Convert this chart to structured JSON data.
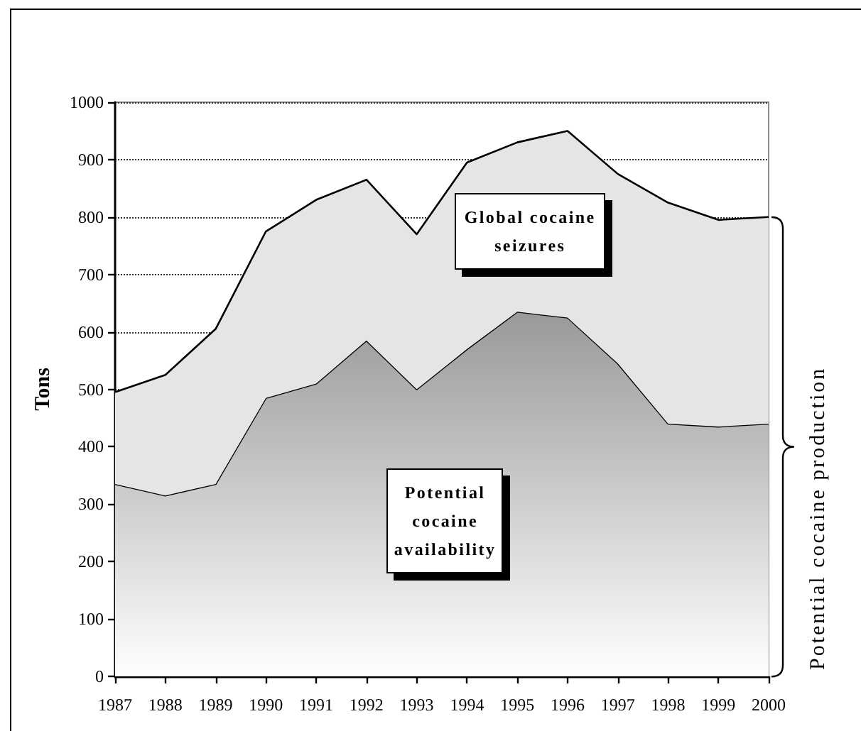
{
  "chart_data": {
    "type": "area",
    "stacked": true,
    "ylabel": "Tons",
    "categories": [
      "1987",
      "1988",
      "1989",
      "1990",
      "1991",
      "1992",
      "1993",
      "1994",
      "1995",
      "1996",
      "1997",
      "1998",
      "1999",
      "2000"
    ],
    "ylim": [
      0,
      1000
    ],
    "yticks": [
      0,
      100,
      200,
      300,
      400,
      500,
      600,
      700,
      800,
      900,
      1000
    ],
    "grid": "y",
    "series": [
      {
        "name": "Potential cocaine availability",
        "color": "#999999",
        "values": [
          335,
          315,
          335,
          485,
          510,
          585,
          500,
          570,
          635,
          625,
          545,
          440,
          435,
          440
        ]
      },
      {
        "name": "Global cocaine seizures",
        "color": "#e5e5e5",
        "values": [
          160,
          210,
          270,
          290,
          320,
          280,
          270,
          325,
          295,
          325,
          330,
          385,
          360,
          360
        ]
      }
    ],
    "annotations": [
      "Potential cocaine production"
    ]
  }
}
